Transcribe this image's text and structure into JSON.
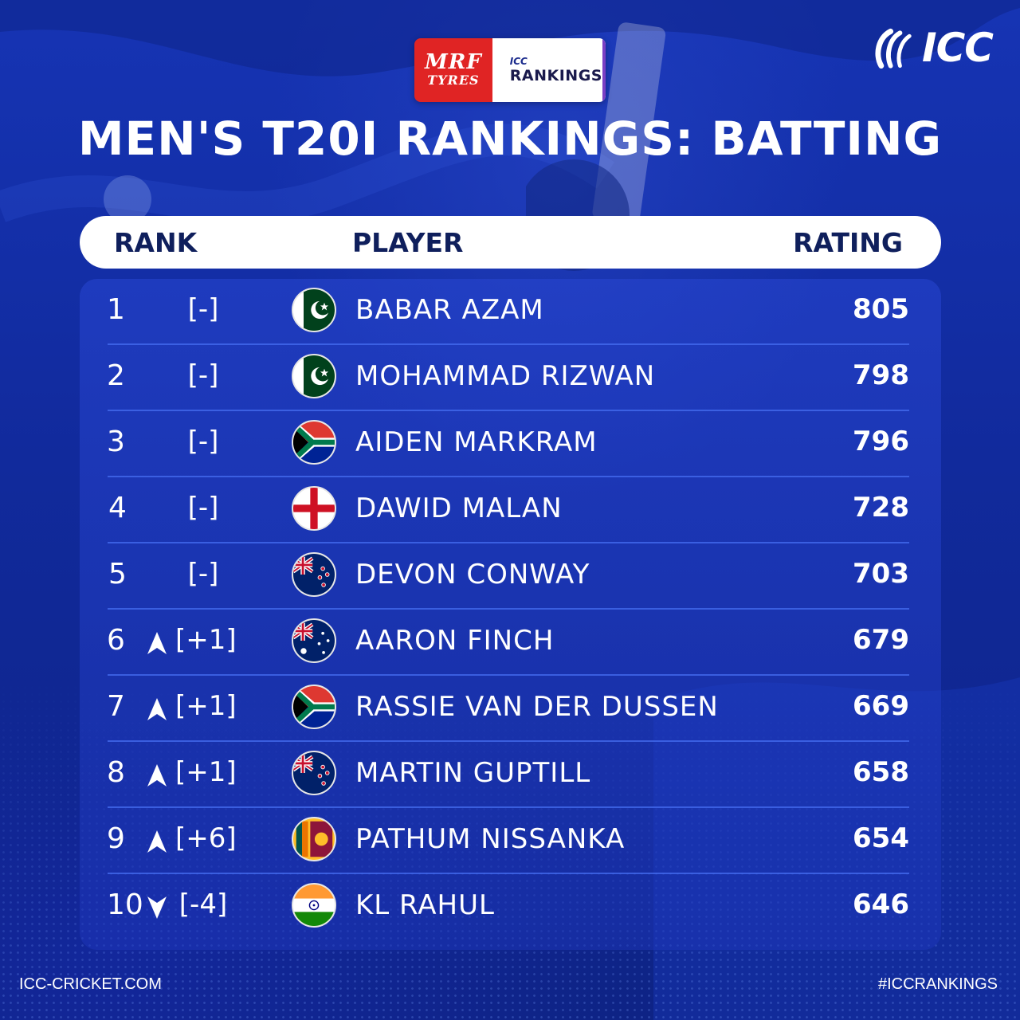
{
  "sponsor": {
    "brand_line1": "MRF",
    "brand_line2": "TYRES",
    "small_label": "ICC",
    "label": "RANKINGS"
  },
  "logo": {
    "text": "ICC"
  },
  "title": "MEN'S T20I RANKINGS: BATTING",
  "columns": {
    "rank": "RANK",
    "player": "PLAYER",
    "rating": "RATING"
  },
  "rows": [
    {
      "rank": "1",
      "movement": "none",
      "change": "[-]",
      "flag": "pakistan",
      "player": "BABAR AZAM",
      "rating": "805"
    },
    {
      "rank": "2",
      "movement": "none",
      "change": "[-]",
      "flag": "pakistan",
      "player": "MOHAMMAD RIZWAN",
      "rating": "798"
    },
    {
      "rank": "3",
      "movement": "none",
      "change": "[-]",
      "flag": "south-africa",
      "player": "AIDEN MARKRAM",
      "rating": "796"
    },
    {
      "rank": "4",
      "movement": "none",
      "change": "[-]",
      "flag": "england",
      "player": "DAWID MALAN",
      "rating": "728"
    },
    {
      "rank": "5",
      "movement": "none",
      "change": "[-]",
      "flag": "new-zealand",
      "player": "DEVON CONWAY",
      "rating": "703"
    },
    {
      "rank": "6",
      "movement": "up",
      "change": "[+1]",
      "flag": "australia",
      "player": "AARON FINCH",
      "rating": "679"
    },
    {
      "rank": "7",
      "movement": "up",
      "change": "[+1]",
      "flag": "south-africa",
      "player": "RASSIE VAN DER DUSSEN",
      "rating": "669"
    },
    {
      "rank": "8",
      "movement": "up",
      "change": "[+1]",
      "flag": "new-zealand",
      "player": "MARTIN GUPTILL",
      "rating": "658"
    },
    {
      "rank": "9",
      "movement": "up",
      "change": "[+6]",
      "flag": "sri-lanka",
      "player": "PATHUM NISSANKA",
      "rating": "654"
    },
    {
      "rank": "10",
      "movement": "down",
      "change": "[-4]",
      "flag": "india",
      "player": "KL RAHUL",
      "rating": "646"
    }
  ],
  "footer": {
    "website": "ICC-CRICKET.COM",
    "hashtag": "#ICCRANKINGS"
  },
  "colors": {
    "background": "#1634b4",
    "header_bg": "#ffffff",
    "header_text": "#0f1f5c",
    "sponsor_red": "#e02424"
  }
}
